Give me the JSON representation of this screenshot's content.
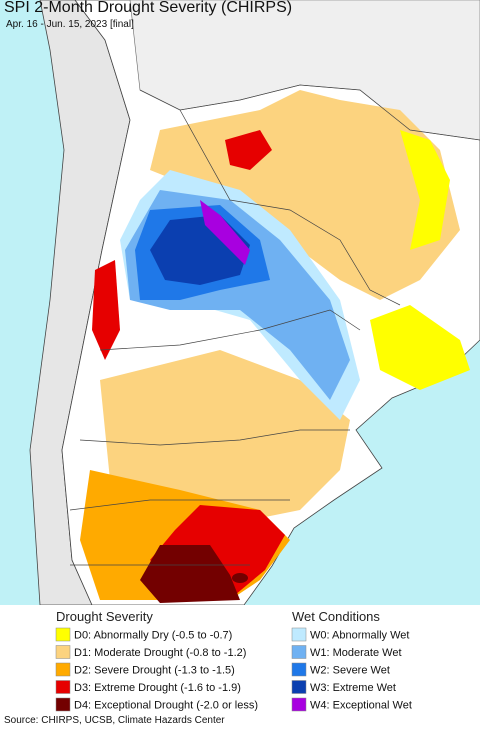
{
  "header": {
    "title": "SPI 2-Month Drought Severity (CHIRPS)",
    "subtitle": "Apr. 16 - Jun. 15, 2023 [final]"
  },
  "legend": {
    "drought": {
      "title": "Drought Severity",
      "items": [
        {
          "label": "D0: Abnormally Dry (-0.5 to -0.7)",
          "color": "#ffff00"
        },
        {
          "label": "D1: Moderate Drought (-0.8 to -1.2)",
          "color": "#fcd37f"
        },
        {
          "label": "D2: Severe Drought (-1.3 to -1.5)",
          "color": "#ffaa00"
        },
        {
          "label": "D3: Extreme Drought (-1.6 to -1.9)",
          "color": "#e60000"
        },
        {
          "label": "D4: Exceptional Drought (-2.0 or less)",
          "color": "#730000"
        }
      ]
    },
    "wet": {
      "title": "Wet Conditions",
      "items": [
        {
          "label": "W0: Abnormally Wet",
          "color": "#bfeaff"
        },
        {
          "label": "W1: Moderate Wet",
          "color": "#6fb1f2"
        },
        {
          "label": "W2: Severe Wet",
          "color": "#1f78e8"
        },
        {
          "label": "W3: Extreme Wet",
          "color": "#0b3fb0"
        },
        {
          "label": "W4: Exceptional Wet",
          "color": "#a800e0"
        }
      ]
    }
  },
  "footer": {
    "source": "Source: CHIRPS, UCSB, Climate Hazards Center"
  }
}
